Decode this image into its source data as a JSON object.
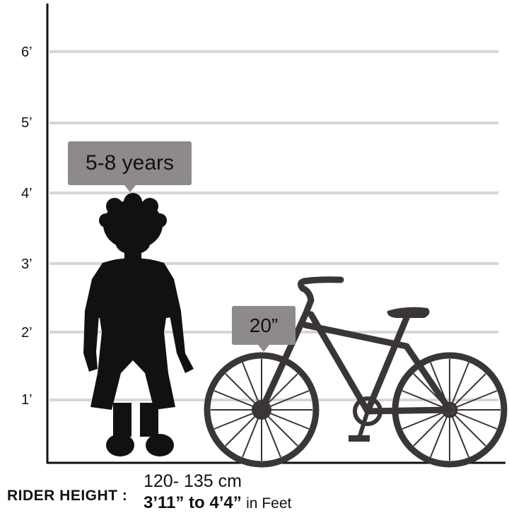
{
  "chart": {
    "axis_ticks": [
      "1’",
      "2’",
      "3’",
      "4’",
      "5’",
      "6’"
    ],
    "grid": true,
    "colors": {
      "grid": "#d6d6d6",
      "silhouette": "#111111",
      "bike": "#3a3536",
      "bubble": "#8e8a8a"
    }
  },
  "age_bubble": {
    "label": "5-8 years"
  },
  "bike_bubble": {
    "label": "20”"
  },
  "rider_height": {
    "label": "RIDER HEIGHT :",
    "cm": "120- 135 cm",
    "feet_value": "3’11” to 4’4”",
    "feet_unit": "in Feet"
  },
  "icons": [
    "child-silhouette-icon",
    "bicycle-icon"
  ]
}
